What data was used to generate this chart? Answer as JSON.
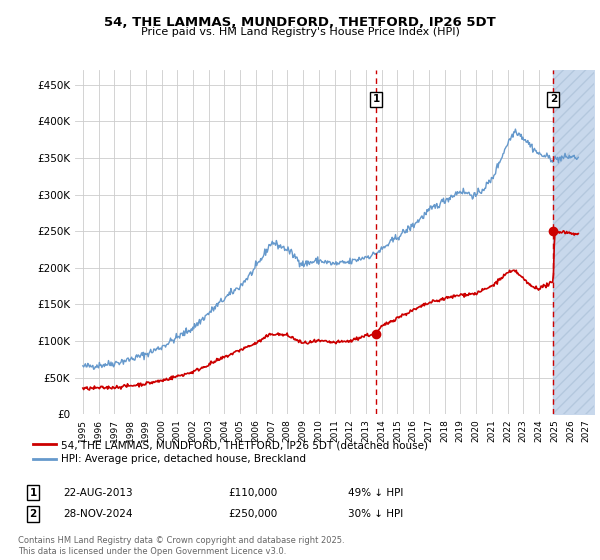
{
  "title": "54, THE LAMMAS, MUNDFORD, THETFORD, IP26 5DT",
  "subtitle": "Price paid vs. HM Land Registry's House Price Index (HPI)",
  "legend_entry1": "54, THE LAMMAS, MUNDFORD, THETFORD, IP26 5DT (detached house)",
  "legend_entry2": "HPI: Average price, detached house, Breckland",
  "annotation1_date": "22-AUG-2013",
  "annotation1_price": "£110,000",
  "annotation1_hpi": "49% ↓ HPI",
  "annotation2_date": "28-NOV-2024",
  "annotation2_price": "£250,000",
  "annotation2_hpi": "30% ↓ HPI",
  "footer": "Contains HM Land Registry data © Crown copyright and database right 2025.\nThis data is licensed under the Open Government Licence v3.0.",
  "ylim": [
    0,
    470000
  ],
  "yticks": [
    0,
    50000,
    100000,
    150000,
    200000,
    250000,
    300000,
    350000,
    400000,
    450000
  ],
  "hatch_color": "#c8d8ec",
  "background_color": "#ffffff",
  "grid_color": "#cccccc",
  "red_line_color": "#cc0000",
  "blue_line_color": "#6699cc",
  "vline_color": "#cc0000",
  "marker1_x": 2013.645,
  "marker1_y": 110000,
  "marker2_x": 2024.91,
  "marker2_y": 250000,
  "xmin": 1994.5,
  "xmax": 2027.5,
  "seed": 42
}
